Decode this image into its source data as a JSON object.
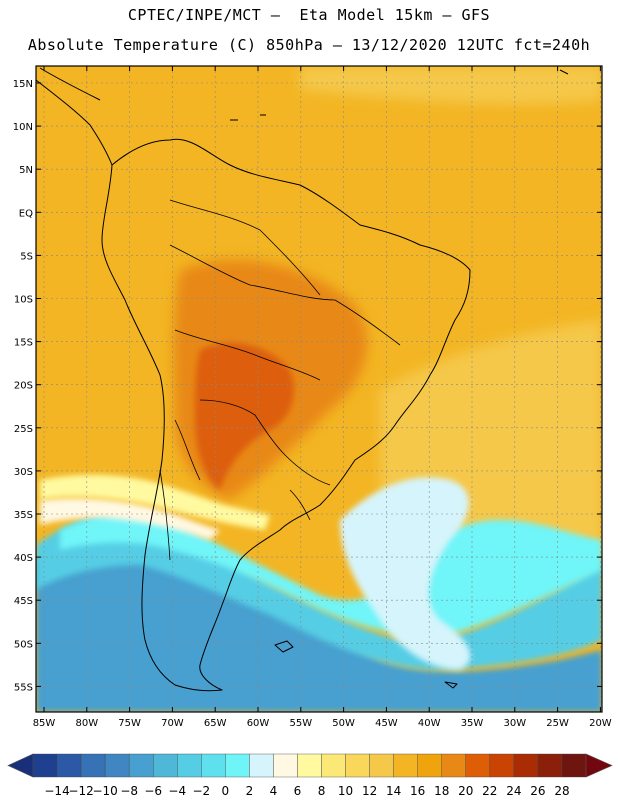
{
  "header": {
    "line1": "CPTEC/INPE/MCT –  Eta Model 15km – GFS",
    "line2": "Absolute Temperature (C) 850hPa – 13/12/2020 12UTC fct=240h"
  },
  "axes": {
    "lat_labels": [
      "15N",
      "10N",
      "5N",
      "EQ",
      "5S",
      "10S",
      "15S",
      "20S",
      "25S",
      "30S",
      "35S",
      "40S",
      "45S",
      "50S",
      "55S"
    ],
    "lon_labels": [
      "85W",
      "80W",
      "75W",
      "70W",
      "65W",
      "60W",
      "55W",
      "50W",
      "45W",
      "40W",
      "35W",
      "30W",
      "25W",
      "20W"
    ]
  },
  "colorbar": {
    "labels": [
      "-14",
      "-12",
      "-10",
      "-8",
      "-6",
      "-4",
      "-2",
      "0",
      "2",
      "4",
      "6",
      "8",
      "10",
      "12",
      "14",
      "16",
      "18",
      "20",
      "22",
      "24",
      "26",
      "28"
    ],
    "colors": [
      "#1f3f8f",
      "#2b59a6",
      "#3672b5",
      "#3f86c2",
      "#47a0cf",
      "#4fb8d9",
      "#55cde5",
      "#5fe0ee",
      "#6ff5f8",
      "#d5f4fb",
      "#fff8e2",
      "#fffaa0",
      "#fbe876",
      "#f8d75a",
      "#f5c84a",
      "#f3b523",
      "#efa40d",
      "#e88816",
      "#dd5e07",
      "#c94402",
      "#a92c04",
      "#8c1f09",
      "#6e1510"
    ],
    "under_color": "#1a2f7a",
    "over_color": "#73070f"
  },
  "map_colors": {
    "ocean_warm": "#f5c84a",
    "ocean_hot": "#f3b523",
    "land_base": "#efa40d",
    "land_warm": "#e88816",
    "land_hot": "#dd5e07",
    "cold_deep": "#47a0cf",
    "cold_mid": "#55cde5",
    "cold_light": "#6ff5f8",
    "pale": "#d5f4fb",
    "cream": "#fff8e2",
    "yellow": "#fffaa0",
    "border": "#000000"
  }
}
